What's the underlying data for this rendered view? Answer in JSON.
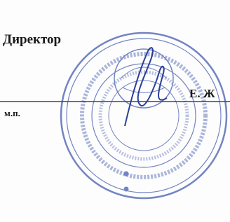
{
  "signature_block": {
    "position": "Директор",
    "name": "Е. Ж",
    "seal_mark": "м.п."
  }
}
